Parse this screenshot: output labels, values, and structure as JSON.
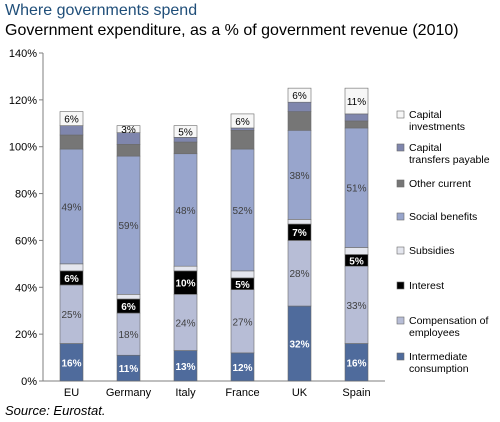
{
  "header": {
    "title": "Where governments spend",
    "subtitle": "Government expenditure, as a % of government revenue (2010)"
  },
  "footer": {
    "source": "Source: Eurostat."
  },
  "colors": {
    "intermediate_consumption": "#4f6b9c",
    "compensation_of_employees": "#b7bdd6",
    "interest": "#000000",
    "subsidies": "#e4e6ee",
    "social_benefits": "#98a5cc",
    "other_current": "#767676",
    "capital_transfers_payable": "#7f86ad",
    "capital_investments": "#f7f7f7"
  },
  "chart_data": {
    "type": "bar",
    "stacked": true,
    "categories": [
      "EU",
      "Germany",
      "Italy",
      "France",
      "UK",
      "Spain"
    ],
    "ylim": [
      0,
      140
    ],
    "yticks": [
      0,
      20,
      40,
      60,
      80,
      100,
      120,
      140
    ],
    "ytick_labels": [
      "0%",
      "20%",
      "40%",
      "60%",
      "80%",
      "100%",
      "120%",
      "140%"
    ],
    "grid": false,
    "legend_position": "right",
    "series": [
      {
        "key": "intermediate_consumption",
        "name": "Intermediate consumption",
        "values": [
          16,
          11,
          13,
          12,
          32,
          16
        ],
        "labels": [
          "16%",
          "11%",
          "13%",
          "12%",
          "32%",
          "16%"
        ]
      },
      {
        "key": "compensation_of_employees",
        "name": "Compensation of employees",
        "values": [
          25,
          18,
          24,
          27,
          28,
          33
        ],
        "labels": [
          "25%",
          "18%",
          "24%",
          "27%",
          "28%",
          "33%"
        ]
      },
      {
        "key": "interest",
        "name": "Interest",
        "values": [
          6,
          6,
          10,
          5,
          7,
          5
        ],
        "labels": [
          "6%",
          "6%",
          "10%",
          "5%",
          "7%",
          "5%"
        ]
      },
      {
        "key": "subsidies",
        "name": "Subsidies",
        "values": [
          3,
          2,
          2,
          3,
          2,
          3
        ],
        "labels": [
          "",
          "",
          "",
          "",
          "",
          ""
        ]
      },
      {
        "key": "social_benefits",
        "name": "Social benefits",
        "values": [
          49,
          59,
          48,
          52,
          38,
          51
        ],
        "labels": [
          "49%",
          "59%",
          "48%",
          "52%",
          "38%",
          "51%"
        ]
      },
      {
        "key": "other_current",
        "name": "Other current",
        "values": [
          6,
          5,
          5,
          8,
          8,
          3
        ],
        "labels": [
          "",
          "",
          "",
          "",
          "",
          ""
        ]
      },
      {
        "key": "capital_transfers_payable",
        "name": "Capital transfers payable",
        "values": [
          4,
          5,
          2,
          1,
          4,
          3
        ],
        "labels": [
          "",
          "",
          "",
          "",
          "",
          ""
        ]
      },
      {
        "key": "capital_investments",
        "name": "Capital investments",
        "values": [
          6,
          3,
          5,
          6,
          6,
          11
        ],
        "labels": [
          "6%",
          "3%",
          "5%",
          "6%",
          "6%",
          "11%"
        ]
      }
    ],
    "legend": [
      {
        "key": "capital_investments",
        "label": "Capital investments"
      },
      {
        "key": "capital_transfers_payable",
        "label": "Capital transfers payable"
      },
      {
        "key": "other_current",
        "label": "Other current"
      },
      {
        "key": "social_benefits",
        "label": "Social benefits"
      },
      {
        "key": "subsidies",
        "label": "Subsidies"
      },
      {
        "key": "interest",
        "label": "Interest"
      },
      {
        "key": "compensation_of_employees",
        "label": "Compensation of employees"
      },
      {
        "key": "intermediate_consumption",
        "label": "Intermediate consumption"
      }
    ]
  }
}
